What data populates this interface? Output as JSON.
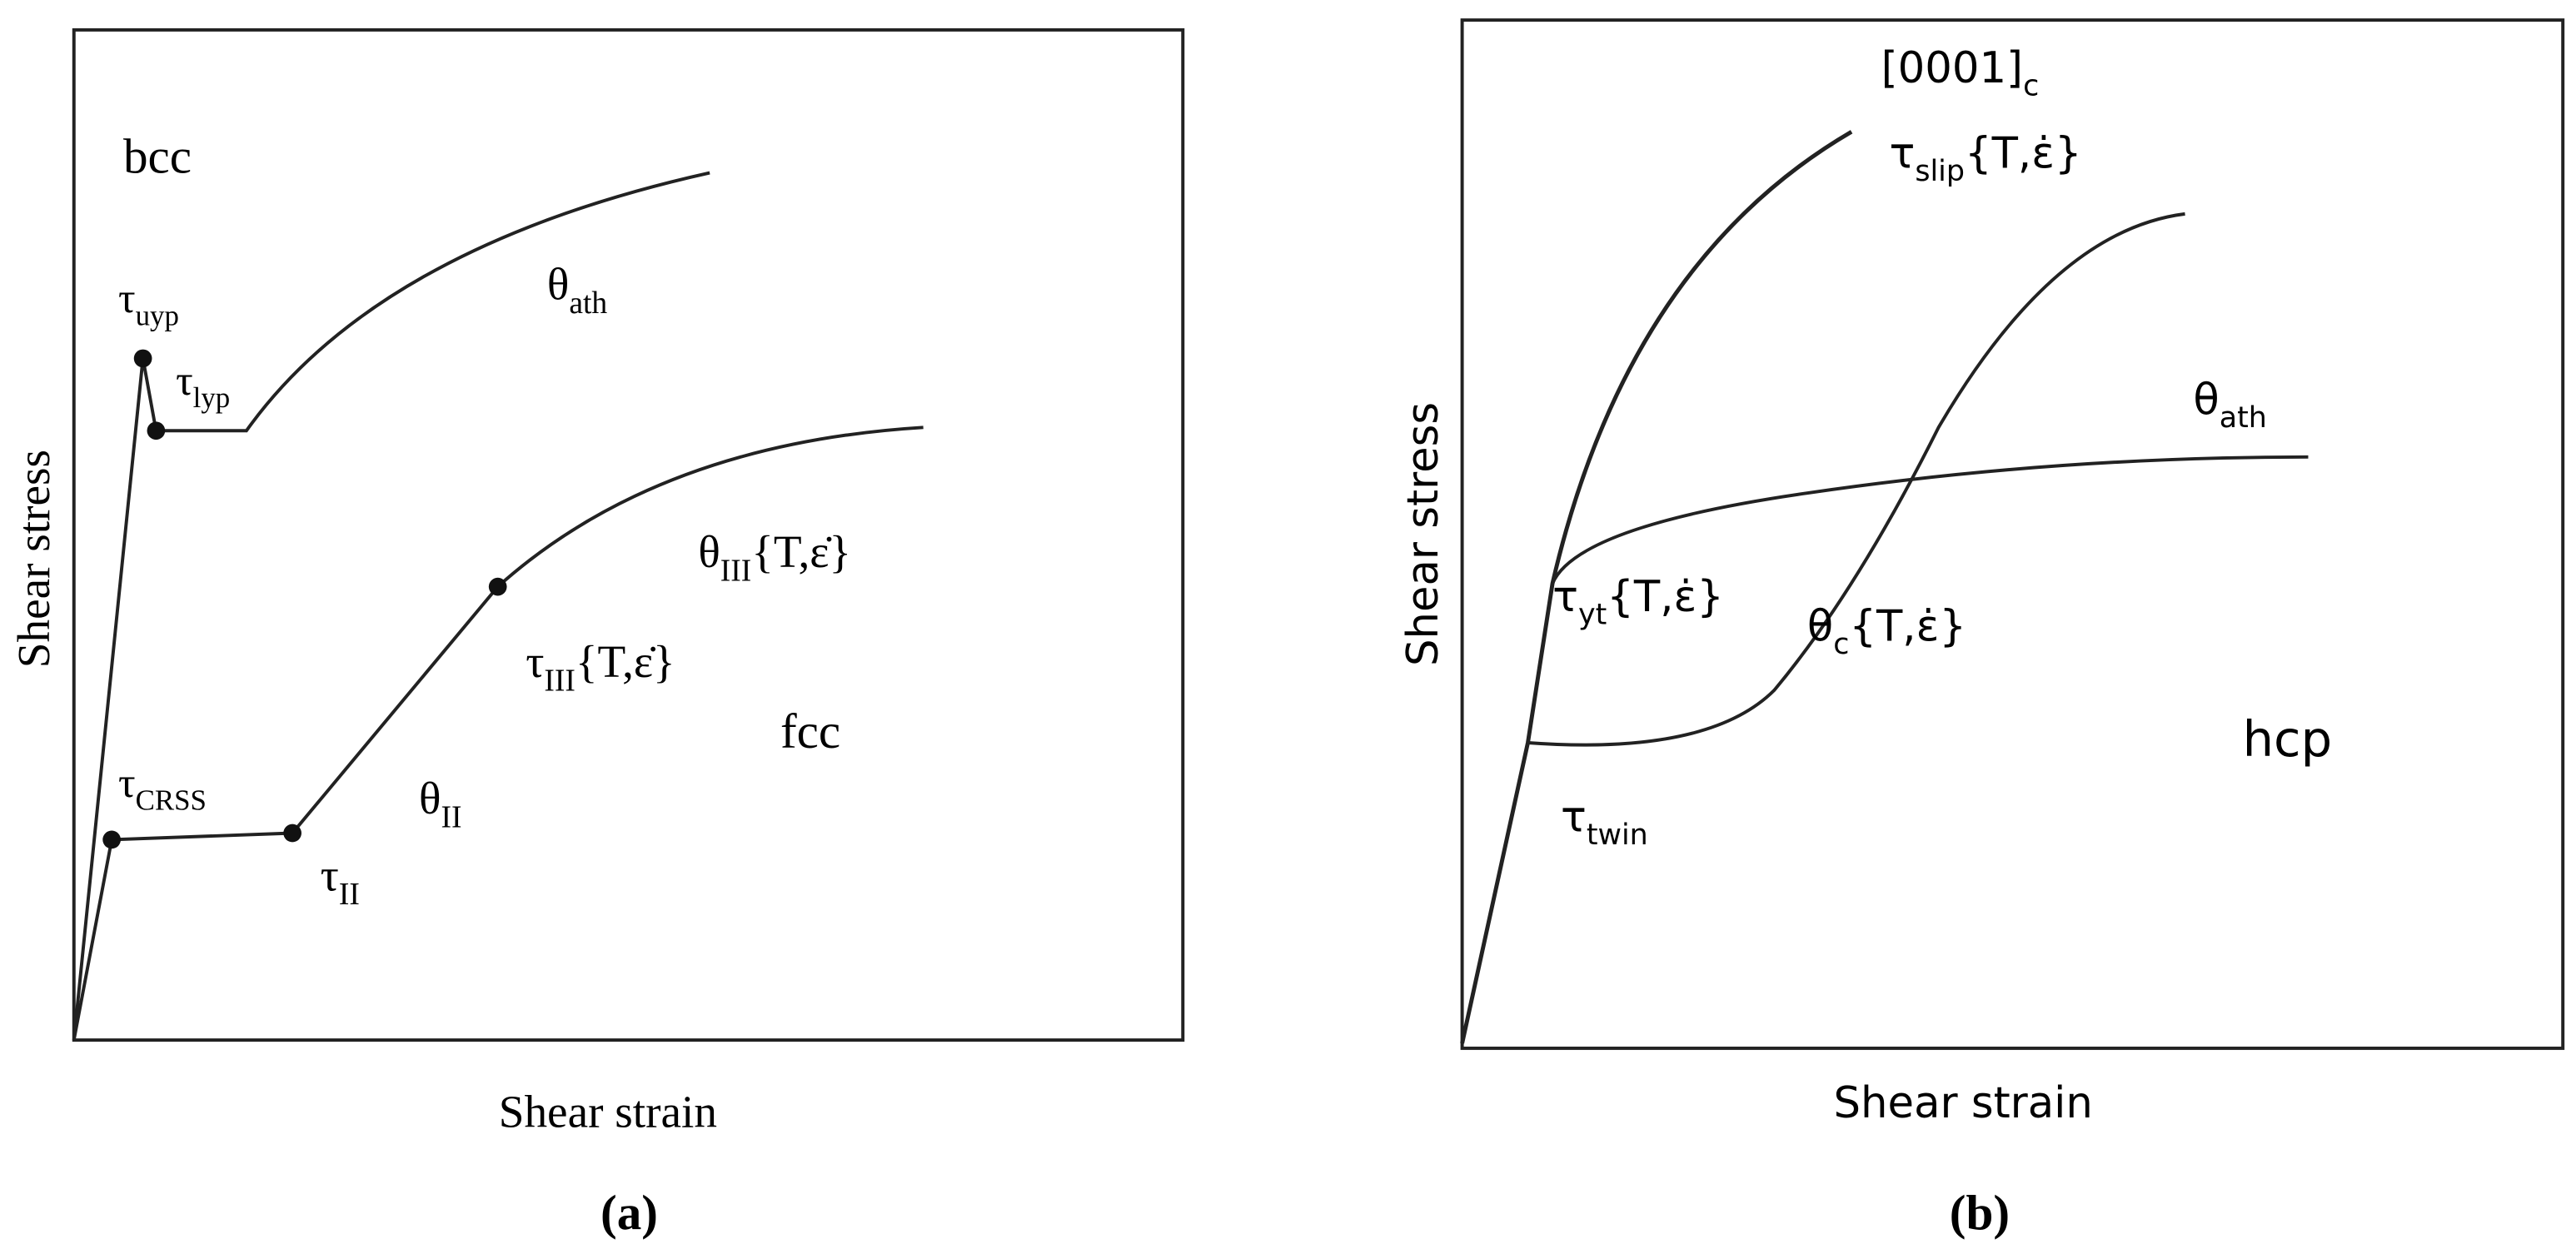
{
  "panels": [
    {
      "caption": "(a)",
      "x_axis_label": "Shear strain",
      "y_axis_label": "Shear stress",
      "annotations": [
        {
          "text": "bcc"
        },
        {
          "text": "τ",
          "sub": "uyp"
        },
        {
          "text": "τ",
          "sub": "lyp"
        },
        {
          "text": "θ",
          "sub": "ath"
        },
        {
          "text": "θ",
          "sub": "III",
          "suffix": "{T,ε̇}"
        },
        {
          "text": "τ",
          "sub": "III",
          "suffix": "{T,ε̇}"
        },
        {
          "text": "fcc"
        },
        {
          "text": "τ",
          "sub": "CRSS"
        },
        {
          "text": "θ",
          "sub": "II"
        },
        {
          "text": "τ",
          "sub": "II"
        }
      ]
    },
    {
      "caption": "(b)",
      "x_axis_label": "Shear strain",
      "y_axis_label": "Shear stress",
      "annotations": [
        {
          "text": "[0001]",
          "sub": "c"
        },
        {
          "text": "τ",
          "sub": "slip",
          "suffix": "{T,ε̇}"
        },
        {
          "text": "θ",
          "sub": "ath"
        },
        {
          "text": "τ",
          "sub": "yt",
          "suffix": "{T,ε̇}"
        },
        {
          "text": "θ",
          "sub": "c",
          "suffix": "{T,ε̇}"
        },
        {
          "text": "hcp"
        },
        {
          "text": "τ",
          "sub": "twin"
        }
      ]
    }
  ]
}
